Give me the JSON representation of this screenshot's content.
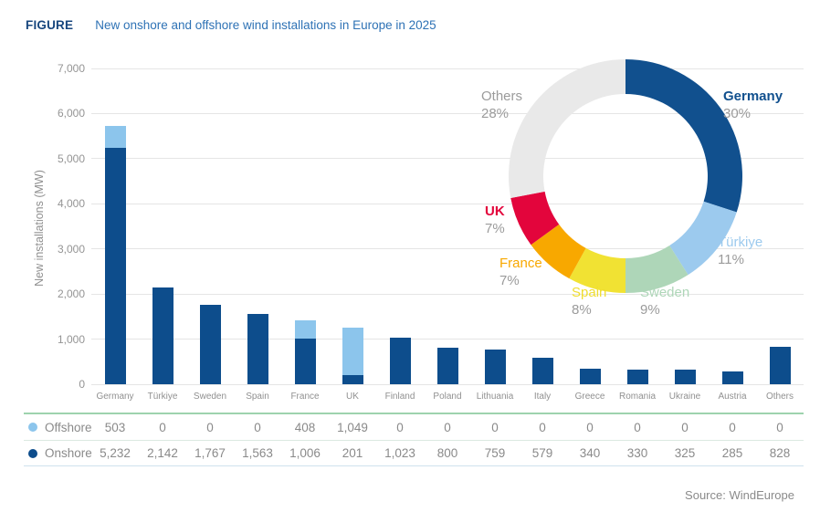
{
  "header": {
    "label": "FIGURE",
    "title": "New onshore and offshore wind installations in Europe in 2025"
  },
  "chart_data": [
    {
      "type": "bar",
      "stacked": true,
      "title": "New onshore and offshore wind installations in Europe in 2025",
      "ylabel": "New installations (MW)",
      "ylim": [
        0,
        7000
      ],
      "ytick_step": 1000,
      "yticks": [
        "0",
        "1,000",
        "2,000",
        "3,000",
        "4,000",
        "5,000",
        "6,000",
        "7,000"
      ],
      "grid": true,
      "categories": [
        "Germany",
        "Türkiye",
        "Sweden",
        "Spain",
        "France",
        "UK",
        "Finland",
        "Poland",
        "Lithuania",
        "Italy",
        "Greece",
        "Romania",
        "Ukraine",
        "Austria",
        "Others"
      ],
      "series": [
        {
          "name": "Offshore",
          "color": "#8cc5ec",
          "values": [
            503,
            0,
            0,
            0,
            408,
            1049,
            0,
            0,
            0,
            0,
            0,
            0,
            0,
            0,
            0
          ]
        },
        {
          "name": "Onshore",
          "color": "#0d4d8c",
          "values": [
            5232,
            2142,
            1767,
            1563,
            1006,
            201,
            1023,
            800,
            759,
            579,
            340,
            330,
            325,
            285,
            828
          ]
        }
      ]
    },
    {
      "type": "pie",
      "donut": true,
      "slices": [
        {
          "label": "Germany",
          "pct": 30,
          "pct_label": "30%",
          "color": "#11508e",
          "label_color": "#11508e",
          "bold": true
        },
        {
          "label": "Türkiye",
          "pct": 11,
          "pct_label": "11%",
          "color": "#9ccaee",
          "label_color": "#9ccaee",
          "bold": false
        },
        {
          "label": "Sweden",
          "pct": 9,
          "pct_label": "9%",
          "color": "#aed6b8",
          "label_color": "#aed6b8",
          "bold": false
        },
        {
          "label": "Spain",
          "pct": 8,
          "pct_label": "8%",
          "color": "#f1e233",
          "label_color": "#efdd2e",
          "bold": false
        },
        {
          "label": "France",
          "pct": 7,
          "pct_label": "7%",
          "color": "#f8a800",
          "label_color": "#f8a800",
          "bold": false
        },
        {
          "label": "UK",
          "pct": 7,
          "pct_label": "7%",
          "color": "#e3053c",
          "label_color": "#e3053c",
          "bold": true
        },
        {
          "label": "Others",
          "pct": 28,
          "pct_label": "28%",
          "color": "#e9e9e9",
          "label_color": "#9b9b9b",
          "bold": false
        }
      ]
    }
  ],
  "table": {
    "rows": [
      {
        "label": "Offshore",
        "dot_color": "#8cc5ec",
        "values": [
          "503",
          "0",
          "0",
          "0",
          "408",
          "1,049",
          "0",
          "0",
          "0",
          "0",
          "0",
          "0",
          "0",
          "0",
          "0"
        ]
      },
      {
        "label": "Onshore",
        "dot_color": "#0d4d8c",
        "values": [
          "5,232",
          "2,142",
          "1,767",
          "1,563",
          "1,006",
          "201",
          "1,023",
          "800",
          "759",
          "579",
          "340",
          "330",
          "325",
          "285",
          "828"
        ]
      }
    ]
  },
  "source": "Source: WindEurope"
}
